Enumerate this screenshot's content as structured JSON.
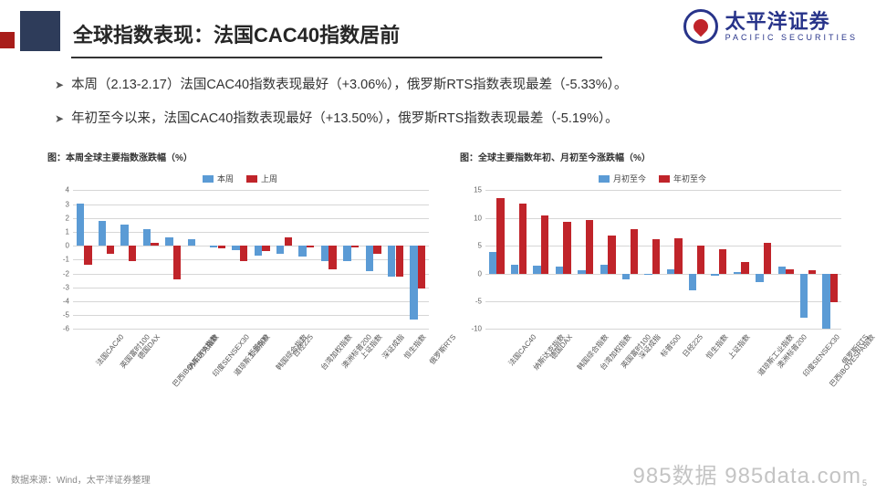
{
  "header": {
    "title": "全球指数表现：法国CAC40指数居前",
    "logo_cn": "太平洋证券",
    "logo_en": "PACIFIC  SECURITIES"
  },
  "bullets": [
    "本周（2.13-2.17）法国CAC40指数表现最好（+3.06%），俄罗斯RTS指数表现最差（-5.33%）。",
    "年初至今以来，法国CAC40指数表现最好（+13.50%），俄罗斯RTS指数表现最差（-5.19%）。"
  ],
  "chart1": {
    "title": "图：本周全球主要指数涨跌幅（%）",
    "legend": [
      {
        "label": "本周",
        "color": "#5b9bd5"
      },
      {
        "label": "上周",
        "color": "#c0242a"
      }
    ],
    "ylim": [
      -6,
      4
    ],
    "ytick_step": 1,
    "grid_color": "#d6d6d6",
    "categories": [
      "法国CAC40",
      "英国富时100",
      "德国DAX",
      "巴西IBOVESPA指数",
      "纳斯达克指数",
      "印度SENSEX30",
      "道琼斯工业指数",
      "标普500",
      "韩国综合指数",
      "日经225",
      "台湾加权指数",
      "澳洲标普200",
      "上证指数",
      "深证成指",
      "恒生指数",
      "俄罗斯RTS"
    ],
    "series_a": [
      3.06,
      1.8,
      1.5,
      1.2,
      0.6,
      0.5,
      -0.1,
      -0.3,
      -0.7,
      -0.6,
      -0.8,
      -1.1,
      -1.1,
      -1.8,
      -2.2,
      -5.33
    ],
    "series_b": [
      -1.4,
      -0.6,
      -1.1,
      0.2,
      -2.4,
      0.0,
      -0.2,
      -1.1,
      -0.4,
      0.6,
      -0.1,
      -1.7,
      -0.1,
      -0.6,
      -2.2,
      -3.1
    ],
    "bar_width": 0.34
  },
  "chart2": {
    "title": "图：全球主要指数年初、月初至今涨跌幅（%）",
    "legend": [
      {
        "label": "月初至今",
        "color": "#5b9bd5"
      },
      {
        "label": "年初至今",
        "color": "#c0242a"
      }
    ],
    "ylim": [
      -10,
      15
    ],
    "ytick_step": 5,
    "grid_color": "#d6d6d6",
    "categories": [
      "法国CAC40",
      "纳斯达克指数",
      "德国DAX",
      "韩国综合指数",
      "台湾加权指数",
      "英国富时100",
      "深证成指",
      "标普500",
      "日经225",
      "恒生指数",
      "上证指数",
      "道琼斯工业指数",
      "澳洲标普200",
      "印度SENSEX30",
      "巴西IBOVESPA指数",
      "俄罗斯RTS"
    ],
    "series_a": [
      3.8,
      1.6,
      1.4,
      1.2,
      0.6,
      1.6,
      -1.0,
      -0.2,
      0.8,
      -3.0,
      -0.4,
      0.3,
      -1.6,
      1.2,
      -8.0,
      -10.0
    ],
    "series_b": [
      13.5,
      12.6,
      10.4,
      9.3,
      9.6,
      6.8,
      8.0,
      6.2,
      6.3,
      5.0,
      4.4,
      2.1,
      5.5,
      0.8,
      0.6,
      -5.19
    ],
    "bar_width": 0.34
  },
  "footer": {
    "source": "数据来源：Wind，太平洋证券整理",
    "watermark": "985数据 985data.com",
    "page": "5"
  }
}
